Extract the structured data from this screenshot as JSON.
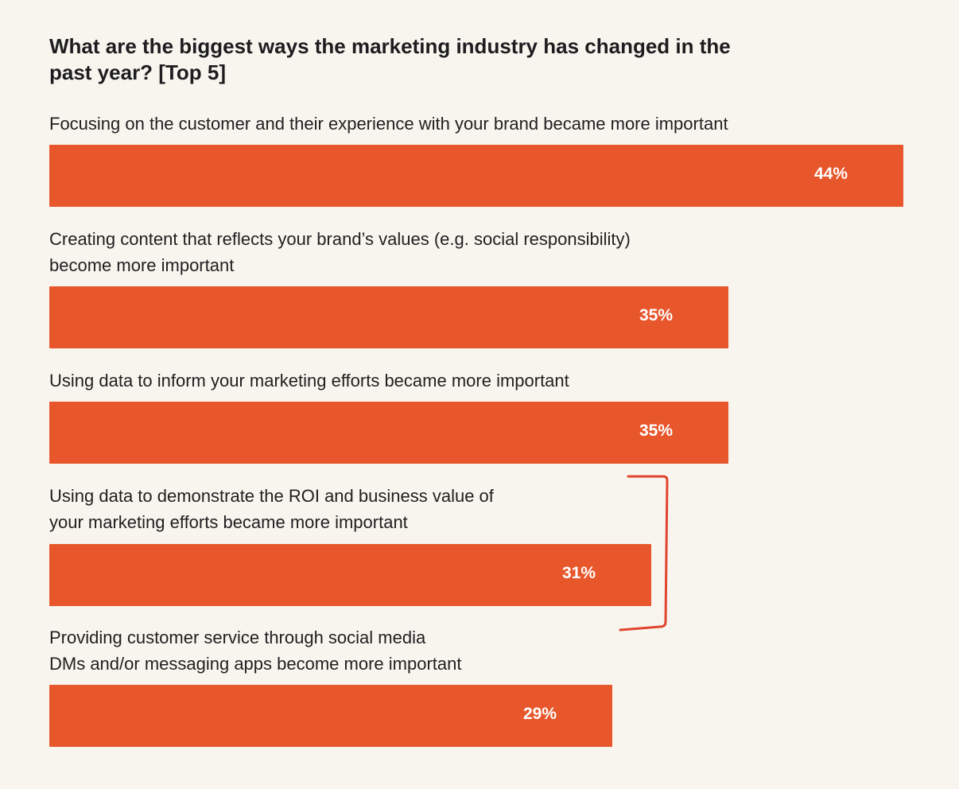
{
  "chart_data": {
    "type": "bar",
    "orientation": "horizontal",
    "title": "What are the biggest ways the marketing industry has changed in the past year? [Top 5]",
    "categories": [
      "Focusing on the customer and their experience with your brand became more important",
      "Creating content that reflects your brand’s values (e.g. social responsibility) become more important",
      "Using data to inform your marketing efforts became more important",
      "Using data to demonstrate the ROI and business value of your marketing efforts became more important",
      "Providing customer service through social media DMs and/or messaging apps become more important"
    ],
    "category_lines": [
      [
        "Focusing on the customer and their experience with your brand became more important"
      ],
      [
        "Creating content that reflects your brand’s values (e.g. social responsibility)",
        "become more important"
      ],
      [
        "Using data to inform your marketing efforts became more important"
      ],
      [
        "Using data to demonstrate the ROI and business value of",
        "your marketing efforts became more important"
      ],
      [
        "Providing customer service through social media",
        "DMs and/or messaging apps become more important"
      ]
    ],
    "values": [
      44,
      35,
      35,
      31,
      29
    ],
    "value_labels": [
      "44%",
      "35%",
      "35%",
      "31%",
      "29%"
    ],
    "unit": "%",
    "xlim": [
      0,
      44
    ],
    "grid": false,
    "legend": "none",
    "highlighted_categories": [
      3
    ]
  },
  "colors": {
    "bar": "#e8562b",
    "background": "#f8f5ef",
    "bracket": "#e0452e",
    "value_text": "#ffffff",
    "text": "#1d1d1f"
  }
}
